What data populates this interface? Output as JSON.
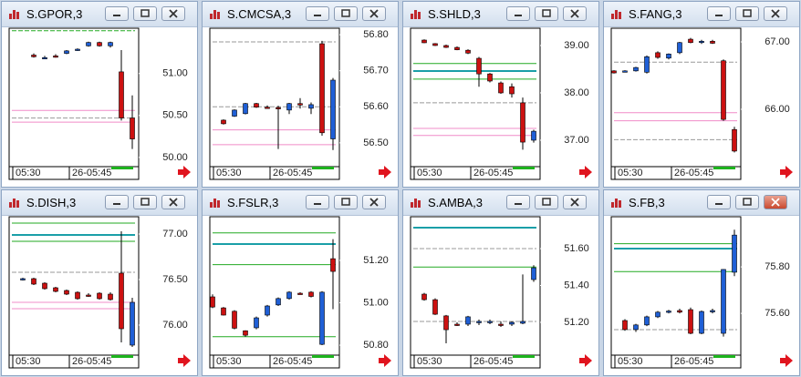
{
  "up_color": "#1f5fd6",
  "down_color": "#cc1111",
  "panels": [
    {
      "title": "S.GPOR,3",
      "ylim": [
        49.89,
        51.54
      ],
      "yticks": [
        {
          "value": 51,
          "label": "51.00"
        },
        {
          "value": 50.5,
          "label": "50.50"
        },
        {
          "value": 50,
          "label": "50.00"
        }
      ],
      "time_labels": [
        "05:30",
        "26-05:45"
      ],
      "candles": [
        [
          51.22,
          51.24,
          51.19,
          51.2
        ],
        [
          51.19,
          51.21,
          51.18,
          51.19
        ],
        [
          51.21,
          51.23,
          51.19,
          51.2
        ],
        [
          51.24,
          51.28,
          51.23,
          51.27
        ],
        [
          51.28,
          51.3,
          51.27,
          51.29
        ],
        [
          51.33,
          51.38,
          51.32,
          51.37
        ],
        [
          51.37,
          51.38,
          51.32,
          51.33
        ],
        [
          51.33,
          51.38,
          51.31,
          51.37
        ],
        [
          51.02,
          51.28,
          50.44,
          50.47
        ],
        [
          50.47,
          50.74,
          50.1,
          50.22
        ]
      ],
      "levels": [
        {
          "value": 51.51,
          "color": "#22aa22",
          "style": "dashed"
        },
        {
          "value": 50.56,
          "color": "#f08cc8",
          "style": "solid"
        },
        {
          "value": 50.47,
          "color": "#999999",
          "style": "dashed"
        },
        {
          "value": 50.42,
          "color": "#f08cc8",
          "style": "solid"
        }
      ]
    },
    {
      "title": "S.CMCSA,3",
      "ylim": [
        56.434,
        56.818
      ],
      "yticks": [
        {
          "value": 56.8,
          "label": "56.80"
        },
        {
          "value": 56.7,
          "label": "56.70"
        },
        {
          "value": 56.6,
          "label": "56.60"
        },
        {
          "value": 56.5,
          "label": "56.50"
        }
      ],
      "time_labels": [
        "05:30",
        "26-05:45"
      ],
      "candles": [
        [
          56.563,
          56.565,
          56.551,
          56.553
        ],
        [
          56.574,
          56.593,
          56.572,
          56.591
        ],
        [
          56.581,
          56.611,
          56.579,
          56.609
        ],
        [
          56.609,
          56.611,
          56.597,
          56.599
        ],
        [
          56.599,
          56.604,
          56.597,
          56.598
        ],
        [
          56.598,
          56.603,
          56.483,
          56.596
        ],
        [
          56.591,
          56.611,
          56.58,
          56.609
        ],
        [
          56.609,
          56.624,
          56.595,
          56.605
        ],
        [
          56.596,
          56.612,
          56.58,
          56.606
        ],
        [
          56.775,
          56.783,
          56.52,
          56.528
        ],
        [
          56.511,
          56.68,
          56.48,
          56.674
        ]
      ],
      "levels": [
        {
          "value": 56.78,
          "color": "#999999",
          "style": "dashed"
        },
        {
          "value": 56.6,
          "color": "#999999",
          "style": "dashed"
        },
        {
          "value": 56.536,
          "color": "#f08cc8",
          "style": "solid"
        },
        {
          "value": 56.495,
          "color": "#f08cc8",
          "style": "solid"
        }
      ]
    },
    {
      "title": "S.SHLD,3",
      "ylim": [
        36.442,
        39.365
      ],
      "yticks": [
        {
          "value": 39,
          "label": "39.00"
        },
        {
          "value": 38,
          "label": "38.00"
        },
        {
          "value": 37,
          "label": "37.00"
        }
      ],
      "time_labels": [
        "05:30",
        "26-05:45"
      ],
      "candles": [
        [
          39.115,
          39.13,
          39.05,
          39.058
        ],
        [
          39.04,
          39.05,
          38.99,
          39.0
        ],
        [
          39.0,
          39.02,
          38.95,
          38.96
        ],
        [
          38.96,
          38.98,
          38.9,
          38.91
        ],
        [
          38.9,
          38.92,
          38.82,
          38.84
        ],
        [
          38.73,
          38.76,
          38.13,
          38.4
        ],
        [
          38.4,
          38.42,
          38.22,
          38.25
        ],
        [
          38.21,
          38.24,
          37.98,
          38.0
        ],
        [
          38.13,
          38.2,
          37.9,
          37.98
        ],
        [
          37.79,
          37.9,
          36.8,
          36.96
        ],
        [
          37.0,
          37.22,
          36.95,
          37.19
        ]
      ],
      "levels": [
        {
          "value": 38.62,
          "color": "#22aa22",
          "style": "solid"
        },
        {
          "value": 38.46,
          "color": "#1a9fa8",
          "style": "solid"
        },
        {
          "value": 38.29,
          "color": "#22aa22",
          "style": "solid"
        },
        {
          "value": 37.79,
          "color": "#999999",
          "style": "dashed"
        },
        {
          "value": 37.25,
          "color": "#f08cc8",
          "style": "solid"
        },
        {
          "value": 37.1,
          "color": "#f08cc8",
          "style": "solid"
        }
      ]
    },
    {
      "title": "S.FANG,3",
      "ylim": [
        65.149,
        67.203
      ],
      "yticks": [
        {
          "value": 67,
          "label": "67.00"
        },
        {
          "value": 66,
          "label": "66.00"
        }
      ],
      "time_labels": [
        "05:30",
        "26-05:45"
      ],
      "candles": [
        [
          66.57,
          66.58,
          66.53,
          66.54
        ],
        [
          66.57,
          66.58,
          66.56,
          66.57
        ],
        [
          66.57,
          66.63,
          66.56,
          66.62
        ],
        [
          66.55,
          66.8,
          66.53,
          66.78
        ],
        [
          66.84,
          66.86,
          66.75,
          66.77
        ],
        [
          66.76,
          66.83,
          66.74,
          66.82
        ],
        [
          66.84,
          67.0,
          66.82,
          66.99
        ],
        [
          67.04,
          67.06,
          66.98,
          66.99
        ],
        [
          66.99,
          67.03,
          66.97,
          67.01
        ],
        [
          67.01,
          67.03,
          66.97,
          66.98
        ],
        [
          66.72,
          66.74,
          65.83,
          65.85
        ],
        [
          65.7,
          65.74,
          65.36,
          65.38
        ]
      ],
      "levels": [
        {
          "value": 66.7,
          "color": "#999999",
          "style": "dashed"
        },
        {
          "value": 65.95,
          "color": "#f08cc8",
          "style": "solid"
        },
        {
          "value": 65.83,
          "color": "#f08cc8",
          "style": "solid"
        },
        {
          "value": 65.55,
          "color": "#999999",
          "style": "dashed"
        }
      ]
    },
    {
      "title": "S.DISH,3",
      "ylim": [
        75.67,
        77.19
      ],
      "yticks": [
        {
          "value": 77,
          "label": "77.00"
        },
        {
          "value": 76.5,
          "label": "76.50"
        },
        {
          "value": 76,
          "label": "76.00"
        }
      ],
      "time_labels": [
        "05:30",
        "26-05:45"
      ],
      "candles": [
        [
          76.5,
          76.52,
          76.49,
          76.51
        ],
        [
          76.51,
          76.52,
          76.44,
          76.45
        ],
        [
          76.46,
          76.47,
          76.39,
          76.4
        ],
        [
          76.41,
          76.42,
          76.36,
          76.37
        ],
        [
          76.38,
          76.39,
          76.33,
          76.34
        ],
        [
          76.36,
          76.37,
          76.28,
          76.29
        ],
        [
          76.33,
          76.35,
          76.31,
          76.32
        ],
        [
          76.35,
          76.36,
          76.28,
          76.29
        ],
        [
          76.34,
          76.36,
          76.27,
          76.28
        ],
        [
          76.57,
          77.03,
          75.81,
          75.96
        ],
        [
          75.78,
          76.3,
          75.76,
          76.25
        ]
      ],
      "levels": [
        {
          "value": 77.12,
          "color": "#22aa22",
          "style": "solid"
        },
        {
          "value": 76.99,
          "color": "#1a9fa8",
          "style": "solid"
        },
        {
          "value": 76.92,
          "color": "#22aa22",
          "style": "solid"
        },
        {
          "value": 76.58,
          "color": "#999999",
          "style": "dashed"
        },
        {
          "value": 76.25,
          "color": "#f08cc8",
          "style": "solid"
        },
        {
          "value": 76.18,
          "color": "#f08cc8",
          "style": "solid"
        }
      ]
    },
    {
      "title": "S.FSLR,3",
      "ylim": [
        50.753,
        51.406
      ],
      "yticks": [
        {
          "value": 51.2,
          "label": "51.20"
        },
        {
          "value": 51,
          "label": "51.00"
        },
        {
          "value": 50.8,
          "label": "50.80"
        }
      ],
      "time_labels": [
        "05:30",
        "26-05:45"
      ],
      "candles": [
        [
          51.028,
          51.04,
          50.975,
          50.98
        ],
        [
          50.976,
          50.98,
          50.94,
          50.942
        ],
        [
          50.96,
          50.965,
          50.875,
          50.88
        ],
        [
          50.868,
          50.87,
          50.84,
          50.847
        ],
        [
          50.882,
          50.935,
          50.875,
          50.929
        ],
        [
          50.942,
          50.99,
          50.935,
          50.985
        ],
        [
          50.99,
          51.025,
          50.985,
          51.02
        ],
        [
          51.02,
          51.055,
          51.015,
          51.05
        ],
        [
          51.045,
          51.05,
          51.04,
          51.042
        ],
        [
          51.05,
          51.055,
          51.025,
          51.03
        ],
        [
          50.804,
          51.055,
          50.8,
          51.05
        ],
        [
          51.208,
          51.3,
          50.97,
          51.148
        ]
      ],
      "levels": [
        {
          "value": 51.33,
          "color": "#22aa22",
          "style": "solid"
        },
        {
          "value": 51.277,
          "color": "#1a9fa8",
          "style": "solid"
        },
        {
          "value": 51.18,
          "color": "#22aa22",
          "style": "solid"
        },
        {
          "value": 50.84,
          "color": "#22aa22",
          "style": "solid"
        }
      ]
    },
    {
      "title": "S.AMBA,3",
      "ylim": [
        51.022,
        51.773
      ],
      "yticks": [
        {
          "value": 51.6,
          "label": "51.60"
        },
        {
          "value": 51.4,
          "label": "51.40"
        },
        {
          "value": 51.2,
          "label": "51.20"
        }
      ],
      "time_labels": [
        "05:30",
        "26-05:45"
      ],
      "candles": [
        [
          51.353,
          51.36,
          51.318,
          51.323
        ],
        [
          51.323,
          51.33,
          51.24,
          51.244
        ],
        [
          51.235,
          51.24,
          51.086,
          51.16
        ],
        [
          51.19,
          51.2,
          51.18,
          51.188
        ],
        [
          51.19,
          51.235,
          51.18,
          51.23
        ],
        [
          51.2,
          51.215,
          51.185,
          51.205
        ],
        [
          51.2,
          51.215,
          51.19,
          51.205
        ],
        [
          51.19,
          51.205,
          51.175,
          51.188
        ],
        [
          51.19,
          51.205,
          51.18,
          51.2
        ],
        [
          51.195,
          51.46,
          51.19,
          51.205
        ],
        [
          51.432,
          51.51,
          51.42,
          51.496
        ]
      ],
      "levels": [
        {
          "value": 51.714,
          "color": "#1a9fa8",
          "style": "solid"
        },
        {
          "value": 51.6,
          "color": "#999999",
          "style": "dashed"
        },
        {
          "value": 51.5,
          "color": "#22aa22",
          "style": "solid"
        },
        {
          "value": 51.205,
          "color": "#999999",
          "style": "dashed"
        }
      ]
    },
    {
      "title": "S.FB,3",
      "ylim": [
        75.42,
        76.016
      ],
      "yticks": [
        {
          "value": 75.8,
          "label": "75.80"
        },
        {
          "value": 75.6,
          "label": "75.60"
        }
      ],
      "time_labels": [
        "05:30",
        "26-05:45"
      ],
      "candles": [
        [
          75.569,
          75.575,
          75.525,
          75.53
        ],
        [
          75.53,
          75.555,
          75.52,
          75.55
        ],
        [
          75.55,
          75.59,
          75.545,
          75.585
        ],
        [
          75.585,
          75.61,
          75.58,
          75.605
        ],
        [
          75.608,
          75.615,
          75.6,
          75.61
        ],
        [
          75.612,
          75.62,
          75.6,
          75.605
        ],
        [
          75.616,
          75.625,
          75.51,
          75.514
        ],
        [
          75.514,
          75.612,
          75.51,
          75.608
        ],
        [
          75.61,
          75.62,
          75.6,
          75.612
        ],
        [
          75.514,
          75.79,
          75.5,
          75.789
        ],
        [
          75.777,
          75.96,
          75.76,
          75.937
        ]
      ],
      "levels": [
        {
          "value": 75.9,
          "color": "#22aa22",
          "style": "solid"
        },
        {
          "value": 75.879,
          "color": "#1a9fa8",
          "style": "solid"
        },
        {
          "value": 75.78,
          "color": "#22aa22",
          "style": "solid"
        },
        {
          "value": 75.53,
          "color": "#999999",
          "style": "dashed"
        }
      ]
    }
  ]
}
